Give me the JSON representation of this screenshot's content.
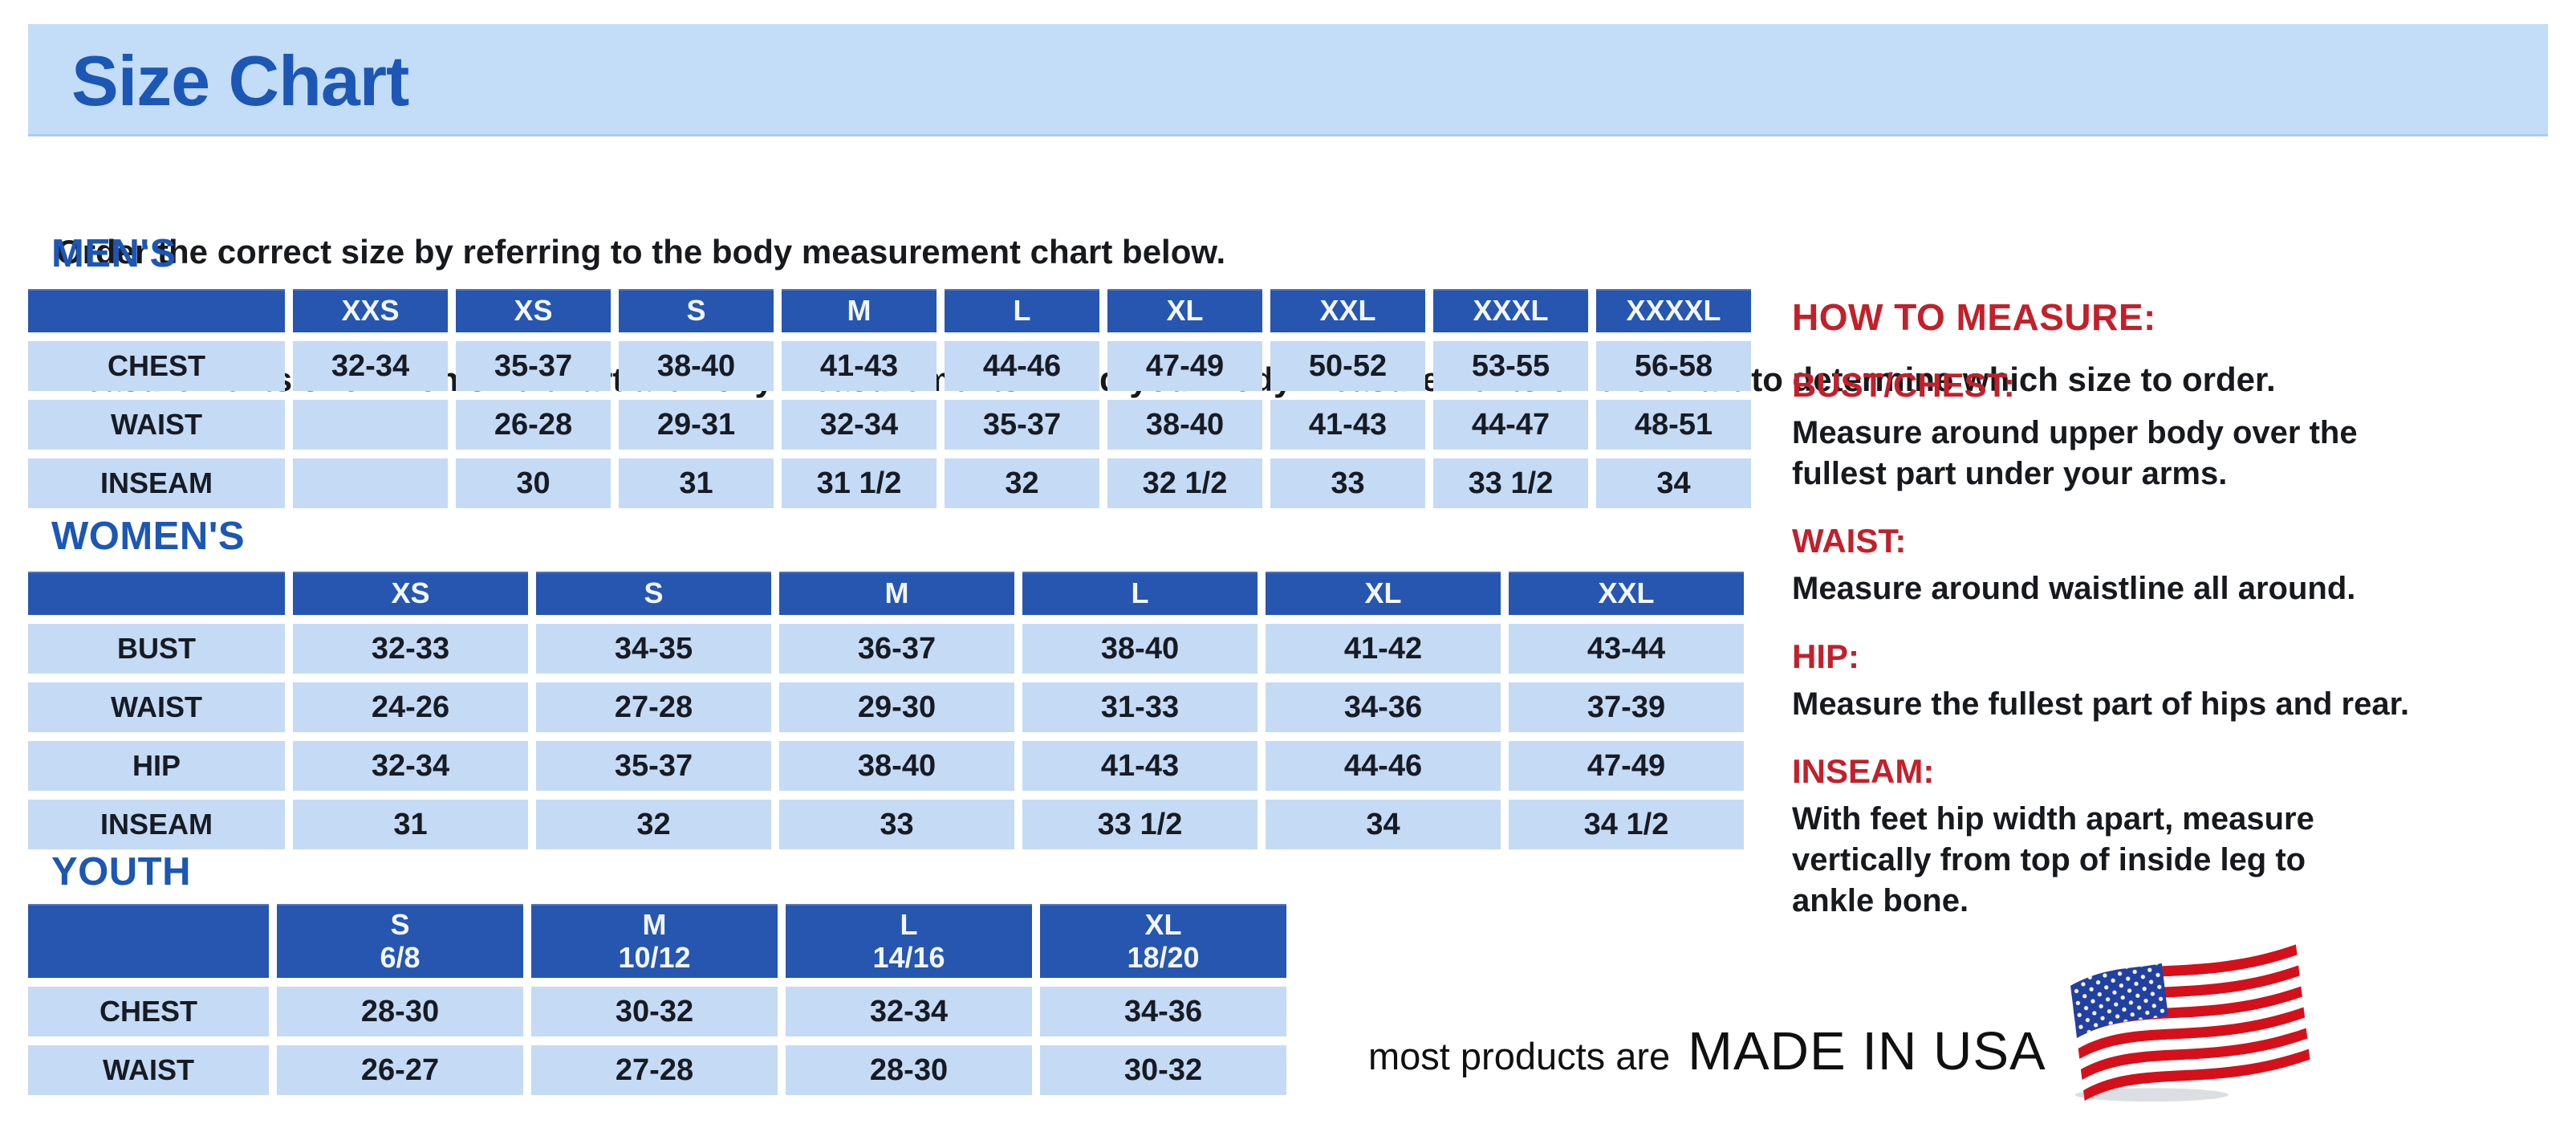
{
  "title_banner": {
    "title": "Size Chart"
  },
  "intro": {
    "line1": "Order the correct size by referring to the body measurement chart below.",
    "line2": "Measurements shown on size chart are body measurements.  Find your body measurements on the chart to determine which size to order."
  },
  "tables": {
    "mens": {
      "heading": "MEN'S",
      "columns": [
        "XXS",
        "XS",
        "S",
        "M",
        "L",
        "XL",
        "XXL",
        "XXXL",
        "XXXXL"
      ],
      "rows": [
        {
          "label": "CHEST",
          "values": [
            "32-34",
            "35-37",
            "38-40",
            "41-43",
            "44-46",
            "47-49",
            "50-52",
            "53-55",
            "56-58"
          ]
        },
        {
          "label": "WAIST",
          "values": [
            "",
            "26-28",
            "29-31",
            "32-34",
            "35-37",
            "38-40",
            "41-43",
            "44-47",
            "48-51"
          ]
        },
        {
          "label": "INSEAM",
          "values": [
            "",
            "30",
            "31",
            "31 1/2",
            "32",
            "32 1/2",
            "33",
            "33 1/2",
            "34"
          ]
        }
      ]
    },
    "womens": {
      "heading": "WOMEN'S",
      "columns": [
        "XS",
        "S",
        "M",
        "L",
        "XL",
        "XXL"
      ],
      "rows": [
        {
          "label": "BUST",
          "values": [
            "32-33",
            "34-35",
            "36-37",
            "38-40",
            "41-42",
            "43-44"
          ]
        },
        {
          "label": "WAIST",
          "values": [
            "24-26",
            "27-28",
            "29-30",
            "31-33",
            "34-36",
            "37-39"
          ]
        },
        {
          "label": "HIP",
          "values": [
            "32-34",
            "35-37",
            "38-40",
            "41-43",
            "44-46",
            "47-49"
          ]
        },
        {
          "label": "INSEAM",
          "values": [
            "31",
            "32",
            "33",
            "33 1/2",
            "34",
            "34 1/2"
          ]
        }
      ]
    },
    "youth": {
      "heading": "YOUTH",
      "columns": [
        "S\n6/8",
        "M\n10/12",
        "L\n14/16",
        "XL\n18/20"
      ],
      "rows": [
        {
          "label": "CHEST",
          "values": [
            "28-30",
            "30-32",
            "32-34",
            "34-36"
          ]
        },
        {
          "label": "WAIST",
          "values": [
            "26-27",
            "27-28",
            "28-30",
            "30-32"
          ]
        }
      ]
    }
  },
  "measure": {
    "heading": "HOW TO MEASURE:",
    "items": [
      {
        "term": "BUST/CHEST:",
        "text": "Measure around upper body over the\nfullest part under your arms."
      },
      {
        "term": "WAIST:",
        "text": "Measure around waistline all around."
      },
      {
        "term": "HIP:",
        "text": "Measure the fullest part of hips and rear."
      },
      {
        "term": "INSEAM:",
        "text": "With feet hip width apart, measure\nvertically from top of inside leg to\nankle bone."
      }
    ]
  },
  "footer": {
    "prefix": "most products are",
    "emphasis": "MADE IN USA",
    "flag_icon": "us-flag-icon"
  },
  "colors": {
    "heading_blue": "#1C57B5",
    "band_bg": "#C3DCF8",
    "header_cell": "#2656B0",
    "cell_bg": "#C5DAF4",
    "accent_red": "#C2202B",
    "flag_red": "#D6101B",
    "flag_blue": "#22409F"
  }
}
